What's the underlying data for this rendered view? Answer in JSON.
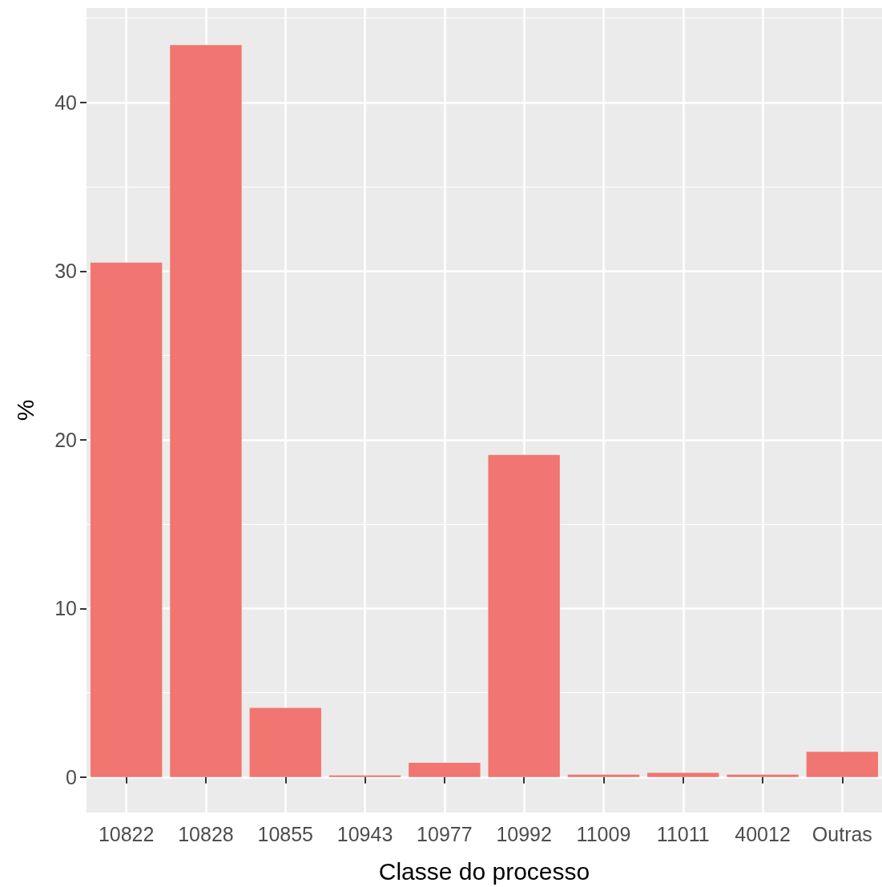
{
  "chart_data": {
    "type": "bar",
    "xlabel": "Classe do processo",
    "ylabel": "%",
    "categories": [
      "10822",
      "10828",
      "10855",
      "10943",
      "10977",
      "10992",
      "11009",
      "11011",
      "40012",
      "Outras"
    ],
    "values": [
      30.5,
      43.4,
      4.1,
      0.1,
      0.85,
      19.1,
      0.15,
      0.25,
      0.15,
      1.5
    ],
    "color": "#f17570",
    "ylim": [
      -2.1,
      45.6
    ],
    "yticks": [
      0,
      10,
      20,
      30,
      40
    ],
    "grid": true
  }
}
